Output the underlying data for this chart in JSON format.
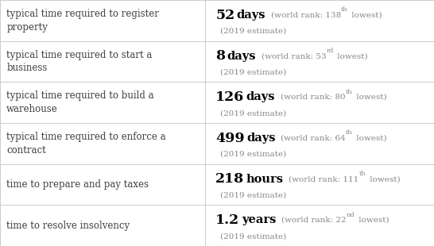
{
  "rows": [
    {
      "label": "typical time required to register\nproperty",
      "value": "52",
      "unit": "days",
      "rank": "138",
      "rank_suffix": "th",
      "estimate": "(2019 estimate)"
    },
    {
      "label": "typical time required to start a\nbusiness",
      "value": "8",
      "unit": "days",
      "rank": "53",
      "rank_suffix": "rd",
      "estimate": "(2019 estimate)"
    },
    {
      "label": "typical time required to build a\nwarehouse",
      "value": "126",
      "unit": "days",
      "rank": "80",
      "rank_suffix": "th",
      "estimate": "(2019 estimate)"
    },
    {
      "label": "typical time required to enforce a\ncontract",
      "value": "499",
      "unit": "days",
      "rank": "64",
      "rank_suffix": "th",
      "estimate": "(2019 estimate)"
    },
    {
      "label": "time to prepare and pay taxes",
      "value": "218",
      "unit": "hours",
      "rank": "111",
      "rank_suffix": "th",
      "estimate": "(2019 estimate)"
    },
    {
      "label": "time to resolve insolvency",
      "value": "1.2",
      "unit": "years",
      "rank": "22",
      "rank_suffix": "nd",
      "estimate": "(2019 estimate)"
    }
  ],
  "bg_color": "#ffffff",
  "label_color": "#404040",
  "value_color": "#000000",
  "unit_color": "#000000",
  "rank_color": "#888888",
  "grid_color": "#cccccc",
  "col_split": 0.472,
  "label_fontsize": 8.5,
  "value_fontsize": 12.5,
  "unit_fontsize": 10.5,
  "rank_fontsize": 7.5,
  "superscript_fontsize": 6.0,
  "estimate_fontsize": 7.5
}
